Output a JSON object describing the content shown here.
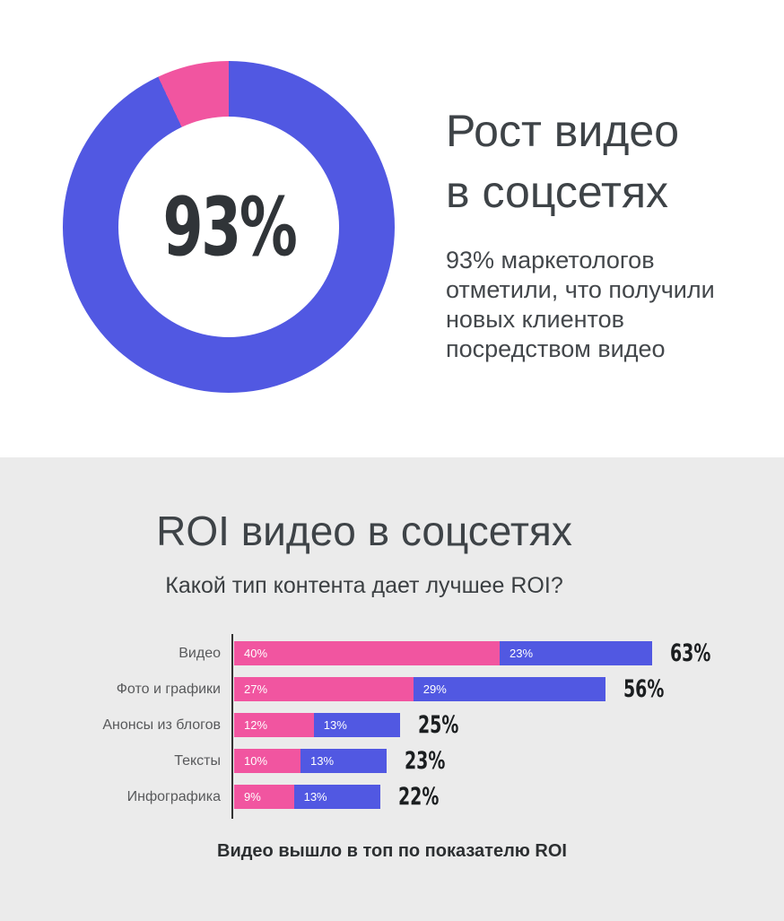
{
  "hero": {
    "title": "Рост видео\nв соцсетях",
    "description": "93% маркетологов отметили, что получили новых клиентов посредством видео"
  },
  "roi": {
    "title": "ROI видео в соцсетях",
    "subtitle": "Какой тип контента дает лучшее ROI?",
    "footer": "Видео вышло в топ по показателю ROI"
  },
  "colors": {
    "pink": "#f155a0",
    "blue": "#5158e2",
    "hero_bg": "#ffffff",
    "section_bg": "#ebebeb",
    "axis": "#333333",
    "heading_text": "#3e4347",
    "donut_value_text": "#303438",
    "total_text": "#1b1e20"
  },
  "chart_data": [
    {
      "type": "pie",
      "subtype": "donut",
      "center_label": "93%",
      "values": [
        93,
        7
      ],
      "slice_colors": [
        "#5158e2",
        "#f155a0"
      ],
      "start_angle_deg": 0,
      "legend": "none"
    },
    {
      "type": "bar",
      "subtype": "horizontal-stacked",
      "title": "ROI видео в соцсетях",
      "subtitle": "Какой тип контента дает лучшее ROI?",
      "categories": [
        "Видео",
        "Фото и графики",
        "Анонсы из блогов",
        "Тексты",
        "Инфографика"
      ],
      "series": [
        {
          "name": "segment-1-pink",
          "color": "#f155a0",
          "values": [
            40,
            27,
            12,
            10,
            9
          ]
        },
        {
          "name": "segment-2-blue",
          "color": "#5158e2",
          "values": [
            23,
            29,
            13,
            13,
            13
          ]
        }
      ],
      "totals": [
        63,
        56,
        25,
        23,
        22
      ],
      "unit": "%",
      "xlim": [
        0,
        63
      ],
      "grid": "off",
      "legend": "none",
      "annotation": "Видео вышло в топ по показателю ROI"
    }
  ]
}
